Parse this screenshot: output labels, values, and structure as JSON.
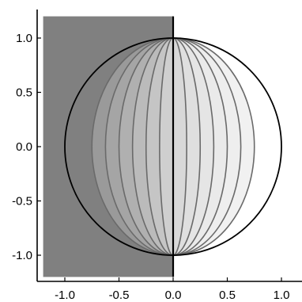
{
  "chart_data": {
    "type": "area",
    "title": "",
    "xlabel": "",
    "ylabel": "",
    "xlim": [
      -1.25,
      1.25
    ],
    "ylim": [
      -1.25,
      1.25
    ],
    "x_ticks": [
      -1.0,
      -0.5,
      0.0,
      0.5,
      1.0
    ],
    "y_ticks": [
      -1.0,
      -0.5,
      0.0,
      0.5,
      1.0
    ],
    "x_tick_labels": [
      "-1.0",
      "-0.5",
      "0.0",
      "0.5",
      "1.0"
    ],
    "y_tick_labels": [
      "-1.0",
      "-0.5",
      "0.0",
      "0.5",
      "1.0"
    ],
    "grid": false,
    "legend": "none",
    "shaded_rectangle": {
      "x_range": [
        -1.2,
        0.0
      ],
      "y_range": [
        -1.2,
        1.2
      ],
      "color": "#808080"
    },
    "unit_circle": {
      "center": [
        0,
        0
      ],
      "radius": 1.0,
      "stroke": "#000000"
    },
    "lens_curves": {
      "description_free": true,
      "half_widths": [
        -0.75,
        -0.625,
        -0.5,
        -0.375,
        -0.25,
        -0.125,
        0.125,
        0.25,
        0.375,
        0.5,
        0.625,
        0.75
      ],
      "fills": [
        "#9a9a9a",
        "#a5a5a5",
        "#b0b0b0",
        "#bbbbbb",
        "#c5c5c5",
        "#cfcfcf",
        "#d8d8d8",
        "#dfdfdf",
        "#e5e5e5",
        "#eaeaea",
        "#eeeeee",
        "#f1f1f1"
      ],
      "stroke": "#6a6a6a"
    },
    "center_line": {
      "x": 0.0,
      "y_range": [
        -1.2,
        1.2
      ],
      "stroke": "#000000"
    }
  }
}
